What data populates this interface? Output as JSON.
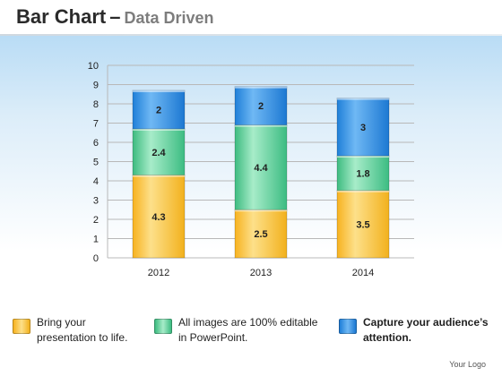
{
  "header": {
    "title": "Bar Chart",
    "separator": "–",
    "subtitle": "Data Driven"
  },
  "colors": {
    "yellow": "#f7c232",
    "green": "#4cc88e",
    "blue": "#2a8ae6",
    "grid": "#b8b8b8"
  },
  "chart_data": {
    "type": "bar",
    "stacked": true,
    "categories": [
      "2012",
      "2013",
      "2014"
    ],
    "series": [
      {
        "values": [
          4.3,
          2.5,
          3.5
        ],
        "color": "#f7c232"
      },
      {
        "values": [
          2.4,
          4.4,
          1.8
        ],
        "color": "#4cc88e"
      },
      {
        "values": [
          2,
          2,
          3
        ],
        "color": "#2a8ae6"
      }
    ],
    "ylim": [
      0,
      10
    ],
    "yticks": [
      "0",
      "1",
      "2",
      "3",
      "4",
      "5",
      "6",
      "7",
      "8",
      "9",
      "10"
    ],
    "grid": true,
    "legend_position": "bottom"
  },
  "legend": {
    "items": [
      {
        "text": "Bring your\npresentation to life.",
        "icon": "yellow-square-icon",
        "bold": false
      },
      {
        "text": "All images are 100% editable\nin PowerPoint.",
        "icon": "green-square-icon",
        "bold": false
      },
      {
        "text": "Capture your audience’s\nattention.",
        "icon": "blue-square-icon",
        "bold": true
      }
    ]
  },
  "footer": {
    "logo_text": "Your Logo"
  }
}
